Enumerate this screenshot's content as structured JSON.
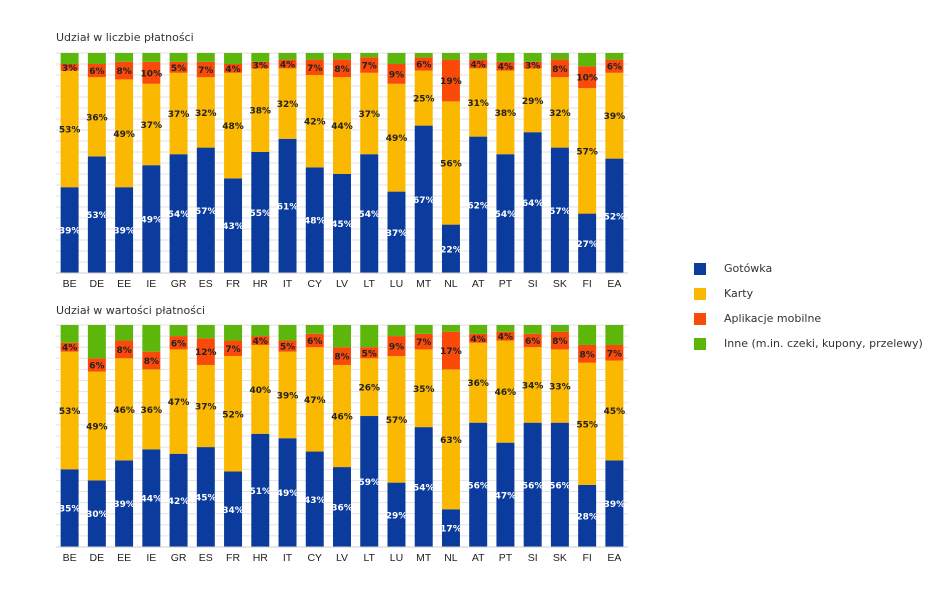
{
  "chart_data": [
    {
      "type": "bar",
      "stacked": true,
      "title": "Udział w liczbie płatności",
      "categories": [
        "BE",
        "DE",
        "EE",
        "IE",
        "GR",
        "ES",
        "FR",
        "HR",
        "IT",
        "CY",
        "LV",
        "LT",
        "LU",
        "MT",
        "NL",
        "AT",
        "PT",
        "SI",
        "SK",
        "FI",
        "EA"
      ],
      "series": [
        {
          "name": "Gotówka",
          "values": [
            39,
            53,
            39,
            49,
            54,
            57,
            43,
            55,
            61,
            48,
            45,
            54,
            37,
            67,
            22,
            62,
            54,
            64,
            57,
            27,
            52
          ]
        },
        {
          "name": "Karty",
          "values": [
            53,
            36,
            49,
            37,
            37,
            32,
            48,
            38,
            32,
            42,
            44,
            37,
            49,
            25,
            56,
            31,
            38,
            29,
            32,
            57,
            39
          ]
        },
        {
          "name": "Aplikacje mobilne",
          "values": [
            3,
            6,
            8,
            10,
            5,
            7,
            4,
            3,
            4,
            7,
            8,
            7,
            9,
            6,
            19,
            4,
            4,
            3,
            8,
            10,
            6
          ]
        },
        {
          "name": "Inne (m.in. czeki, kupony, przelewy)",
          "values": [
            5,
            5,
            4,
            4,
            4,
            4,
            5,
            4,
            3,
            3,
            3,
            2,
            5,
            2,
            3,
            3,
            4,
            4,
            3,
            6,
            3
          ]
        }
      ],
      "ylim": [
        0,
        100
      ],
      "grid": true
    },
    {
      "type": "bar",
      "stacked": true,
      "title": "Udział w wartości płatności",
      "categories": [
        "BE",
        "DE",
        "EE",
        "IE",
        "GR",
        "ES",
        "FR",
        "HR",
        "IT",
        "CY",
        "LV",
        "LT",
        "LU",
        "MT",
        "NL",
        "AT",
        "PT",
        "SI",
        "SK",
        "FI",
        "EA"
      ],
      "series": [
        {
          "name": "Gotówka",
          "values": [
            35,
            30,
            39,
            44,
            42,
            45,
            34,
            51,
            49,
            43,
            36,
            59,
            29,
            54,
            17,
            56,
            47,
            56,
            56,
            28,
            39
          ]
        },
        {
          "name": "Karty",
          "values": [
            53,
            49,
            46,
            36,
            47,
            37,
            52,
            40,
            39,
            47,
            46,
            26,
            57,
            35,
            63,
            36,
            46,
            34,
            33,
            55,
            45
          ]
        },
        {
          "name": "Aplikacje mobilne",
          "values": [
            4,
            6,
            8,
            8,
            6,
            12,
            7,
            4,
            5,
            6,
            8,
            5,
            9,
            7,
            17,
            4,
            4,
            6,
            8,
            8,
            7
          ]
        },
        {
          "name": "Inne (m.in. czeki, kupony, przelewy)",
          "values": [
            8,
            15,
            7,
            12,
            5,
            6,
            7,
            5,
            7,
            4,
            10,
            10,
            5,
            4,
            3,
            4,
            3,
            4,
            3,
            9,
            9
          ]
        }
      ],
      "ylim": [
        0,
        100
      ],
      "grid": true
    }
  ],
  "colors": {
    "Gotówka": "#0a3b9d",
    "Karty": "#fbb800",
    "Aplikacje mobilne": "#fa4a0a",
    "Inne (m.in. czeki, kupony, przelewy)": "#5cb70a"
  },
  "legend": {
    "placement": "right",
    "items": [
      {
        "label": "Gotówka",
        "color": "#0a3b9d"
      },
      {
        "label": "Karty",
        "color": "#fbb800"
      },
      {
        "label": "Aplikacje mobilne",
        "color": "#fa4a0a"
      },
      {
        "label": "Inne (m.in. czeki, kupony, przelewy)",
        "color": "#5cb70a"
      }
    ]
  }
}
